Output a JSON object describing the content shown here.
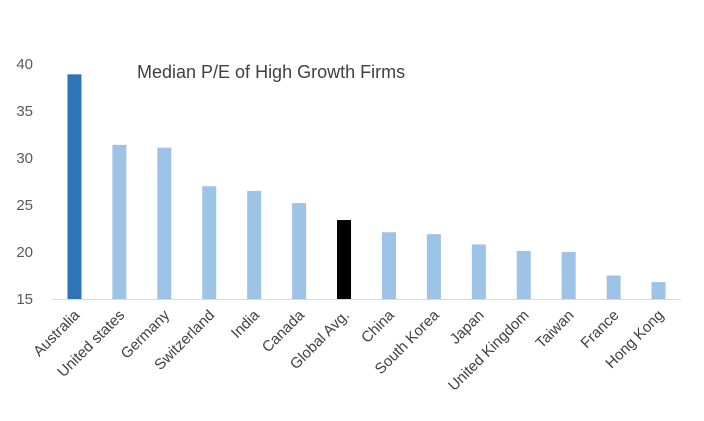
{
  "chart_data": {
    "type": "bar",
    "title": "Median P/E of High  Growth Firms",
    "xlabel": "",
    "ylabel": "",
    "ylim": [
      15,
      40
    ],
    "yticks": [
      "15",
      "20",
      "25",
      "30",
      "35",
      "40"
    ],
    "grid": false,
    "categories": [
      "Australia",
      "United states",
      "Germany",
      "Switzerland",
      "India",
      "Canada",
      "Global Avg.",
      "China",
      "South Korea",
      "Japan",
      "United Kingdom",
      "Taiwan",
      "France",
      "Hong Kong"
    ],
    "values": [
      38.9,
      31.4,
      31.1,
      27.0,
      26.5,
      25.2,
      23.4,
      22.1,
      21.9,
      20.8,
      20.1,
      20.0,
      17.5,
      16.8
    ],
    "colors": {
      "default": "#9dc3e6",
      "highlight_first": "#2e75b6",
      "highlight_average": "#000000",
      "axis": "#d9d9d9"
    },
    "bar_colors": [
      "#2e75b6",
      "#9dc3e6",
      "#9dc3e6",
      "#9dc3e6",
      "#9dc3e6",
      "#9dc3e6",
      "#000000",
      "#9dc3e6",
      "#9dc3e6",
      "#9dc3e6",
      "#9dc3e6",
      "#9dc3e6",
      "#9dc3e6",
      "#9dc3e6"
    ]
  }
}
